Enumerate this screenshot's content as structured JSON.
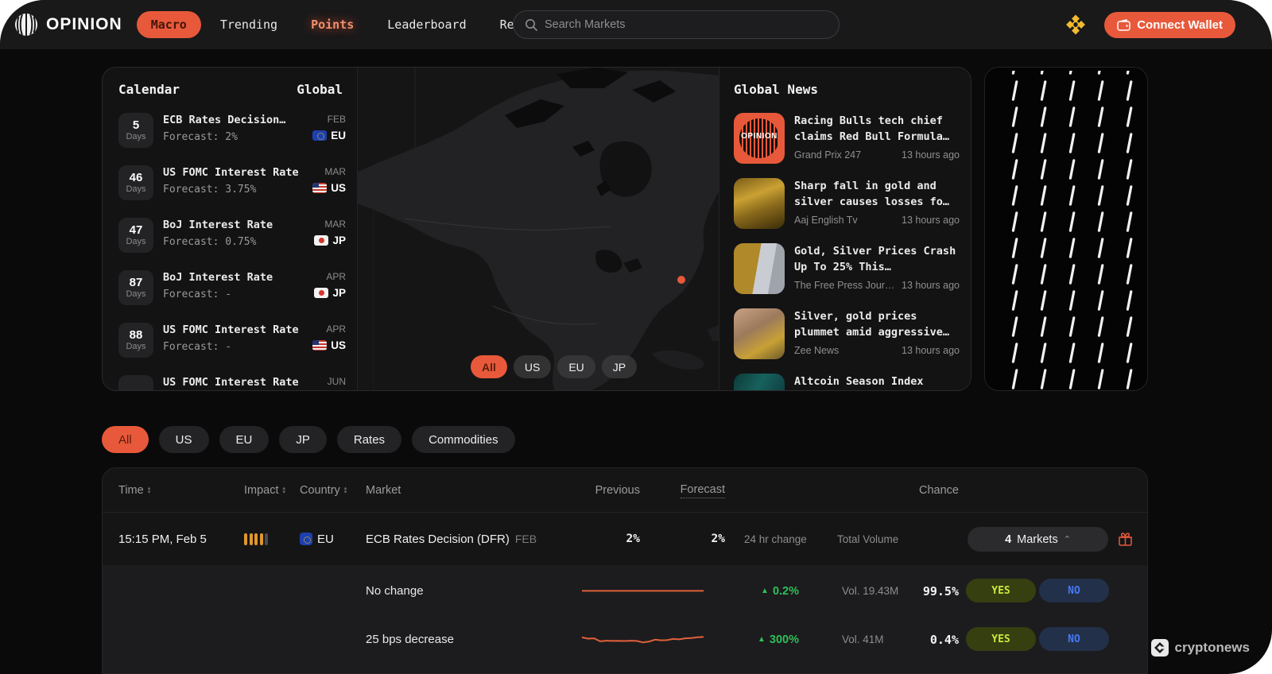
{
  "colors": {
    "accent_orange": "#e7593a",
    "impact_amber": "#e0962f",
    "positive_green": "#2fbf57",
    "yes_lime": "#c9e83c",
    "no_blue": "#4579f2",
    "bnb_yellow": "#f3ba2f"
  },
  "nav": {
    "brand": "OPINION",
    "items": [
      {
        "label": "Macro"
      },
      {
        "label": "Trending"
      },
      {
        "label": "Points"
      },
      {
        "label": "Leaderboard"
      },
      {
        "label": "Referral"
      }
    ],
    "search_placeholder": "Search Markets",
    "connect_wallet": "Connect Wallet"
  },
  "calendar": {
    "title": "Calendar",
    "scope": "Global",
    "events": [
      {
        "days": "5",
        "days_label": "Days",
        "title": "ECB Rates Decision…",
        "month": "FEB",
        "forecast": "Forecast: 2%",
        "country": "EU"
      },
      {
        "days": "46",
        "days_label": "Days",
        "title": "US FOMC Interest Rate",
        "month": "MAR",
        "forecast": "Forecast: 3.75%",
        "country": "US"
      },
      {
        "days": "47",
        "days_label": "Days",
        "title": "BoJ Interest Rate",
        "month": "MAR",
        "forecast": "Forecast: 0.75%",
        "country": "JP"
      },
      {
        "days": "87",
        "days_label": "Days",
        "title": "BoJ Interest Rate",
        "month": "APR",
        "forecast": "Forecast: -",
        "country": "JP"
      },
      {
        "days": "88",
        "days_label": "Days",
        "title": "US FOMC Interest Rate",
        "month": "APR",
        "forecast": "Forecast: -",
        "country": "US"
      },
      {
        "days": "",
        "days_label": "",
        "title": "US FOMC Interest Rate",
        "month": "JUN",
        "forecast": "",
        "country": ""
      }
    ]
  },
  "map": {
    "filters": [
      {
        "label": "All"
      },
      {
        "label": "US"
      },
      {
        "label": "EU"
      },
      {
        "label": "JP"
      }
    ]
  },
  "news": {
    "title": "Global News",
    "items": [
      {
        "title": "Racing Bulls tech chief claims Red Bull Formula…",
        "source": "Grand Prix 247",
        "time": "13 hours ago"
      },
      {
        "title": "Sharp fall in gold and silver causes losses fo…",
        "source": "Aaj English Tv",
        "time": "13 hours ago"
      },
      {
        "title": "Gold, Silver Prices Crash Up To 25% This…",
        "source": "The Free Press Jour…",
        "time": "13 hours ago"
      },
      {
        "title": "Silver, gold prices plummet amid aggressive…",
        "source": "Zee News",
        "time": "13 hours ago"
      },
      {
        "title": "Altcoin Season Index",
        "source": "",
        "time": ""
      }
    ]
  },
  "filters": [
    {
      "label": "All"
    },
    {
      "label": "US"
    },
    {
      "label": "EU"
    },
    {
      "label": "JP"
    },
    {
      "label": "Rates"
    },
    {
      "label": "Commodities"
    }
  ],
  "table": {
    "headers": {
      "time": "Time",
      "impact": "Impact",
      "country": "Country",
      "market": "Market",
      "previous": "Previous",
      "forecast": "Forecast",
      "chance": "Chance"
    },
    "row": {
      "time": "15:15 PM, Feb 5",
      "country": "EU",
      "market": "ECB Rates Decision (DFR)",
      "month": "FEB",
      "previous": "2%",
      "forecast": "2%",
      "change_label": "24 hr change",
      "volume_label": "Total Volume",
      "markets_count": "4",
      "markets_label": "Markets",
      "sub": [
        {
          "name": "No change",
          "change": "0.2%",
          "vol": "Vol. 19.43M",
          "chance": "99.5%",
          "yes": "YES",
          "no": "NO",
          "spark": [
            9,
            9,
            9,
            9,
            9,
            9,
            9,
            9,
            9,
            9,
            9,
            9,
            9,
            9,
            9,
            9
          ]
        },
        {
          "name": "25 bps decrease",
          "change": "300%",
          "vol": "Vol. 41M",
          "chance": "0.4%",
          "yes": "YES",
          "no": "NO",
          "spark": [
            12,
            10,
            10.5,
            6,
            7,
            6.6,
            6.8,
            6.5,
            6.9,
            6.6,
            4.5,
            5.5,
            8.5,
            7.5,
            7.8,
            9.5,
            9,
            10.5,
            10.8,
            12,
            12.5
          ]
        }
      ]
    }
  },
  "watermark": "cryptonews"
}
